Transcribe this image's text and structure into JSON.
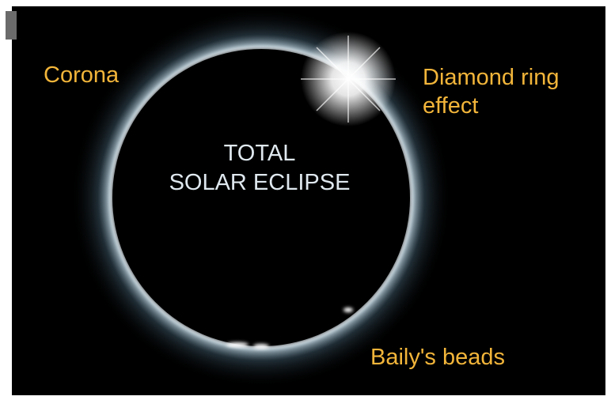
{
  "labels": {
    "corona": [
      "Corona"
    ],
    "diamond_ring": [
      "Diamond ring",
      "effect"
    ],
    "center": [
      "TOTAL",
      "SOLAR ECLIPSE"
    ],
    "bailys_beads": [
      "Baily's beads"
    ]
  }
}
